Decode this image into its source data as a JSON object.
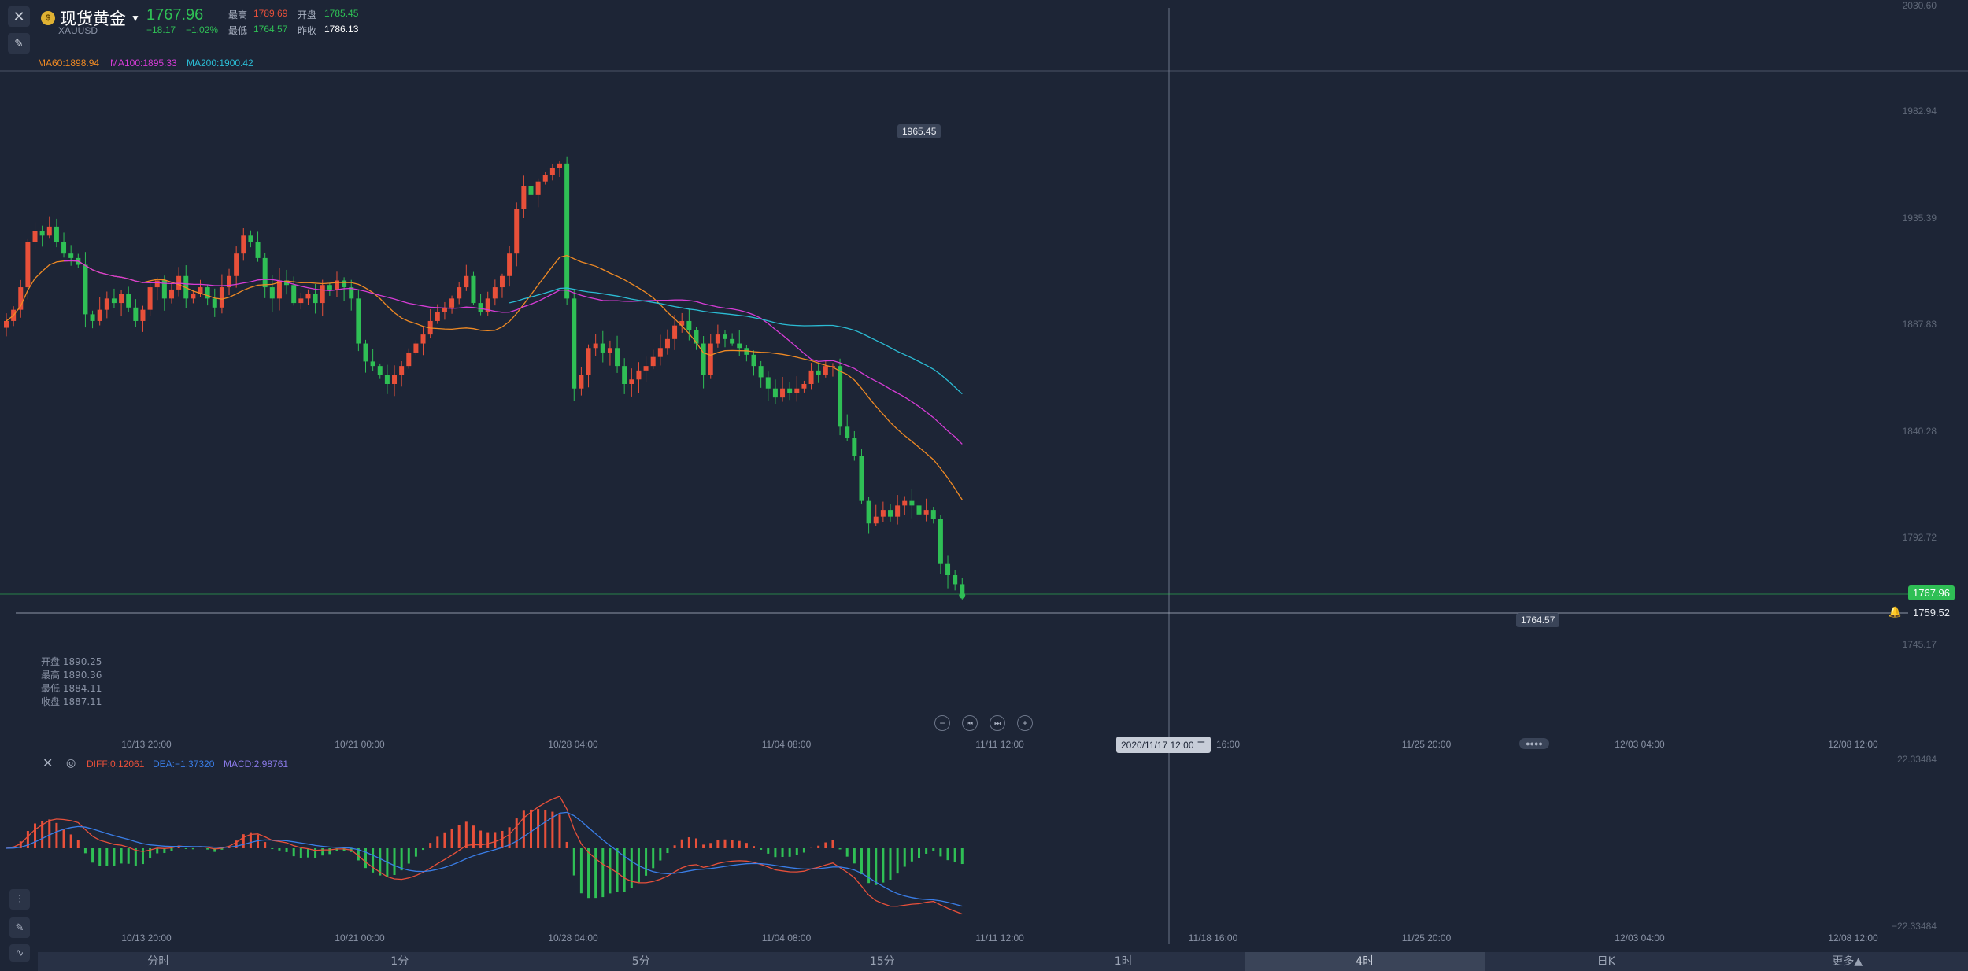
{
  "header": {
    "close_icon": "close-icon",
    "draw_tool_icon": "ruler-icon",
    "symbol_name": "现货黄金",
    "symbol_code": "XAUUSD",
    "price": "1767.96",
    "change": "−18.17",
    "change_pct": "−1.02%",
    "stats": {
      "high_label": "最高",
      "high_value": "1789.69",
      "open_label": "开盘",
      "open_value": "1785.45",
      "low_label": "最低",
      "low_value": "1764.57",
      "prev_close_label": "昨收",
      "prev_close_value": "1786.13"
    }
  },
  "ma_legend": [
    {
      "label": "MA60:1898.94",
      "color": "#f08a24"
    },
    {
      "label": "MA100:1895.33",
      "color": "#d63cd6"
    },
    {
      "label": "MA200:1900.42",
      "color": "#2bbcd4"
    }
  ],
  "y_axis": [
    "2030.60",
    "1982.94",
    "1935.39",
    "1887.83",
    "1840.28",
    "1792.72",
    "1745.17"
  ],
  "price_tags": {
    "high_marker": "1965.45",
    "low_marker": "1764.57",
    "last_price": "1767.96",
    "alert_line": "1759.52",
    "crosshair_time": "2020/11/17 12:00 二"
  },
  "ohlc_panel": [
    "开盘 1890.25",
    "最高 1890.36",
    "最低 1884.11",
    "收盘 1887.11"
  ],
  "x_axis": [
    "10/13 20:00",
    "10/21 00:00",
    "10/28 04:00",
    "11/04 08:00",
    "11/11 12:00",
    "16:00",
    "11/25 20:00",
    "12/03 04:00",
    "12/08 12:00"
  ],
  "x_axis_bottom": [
    "10/13 20:00",
    "10/21 00:00",
    "10/28 04:00",
    "11/04 08:00",
    "11/11 12:00",
    "11/18 16:00",
    "11/25 20:00",
    "12/03 04:00",
    "12/08 12:00"
  ],
  "zoom_controls": [
    "−",
    "⏮",
    "⏭",
    "+"
  ],
  "macd": {
    "diff": "DIFF:0.12061",
    "dea": "DEA:−1.37320",
    "macd": "MACD:2.98761",
    "y_top": "22.33484",
    "y_bottom": "−22.33484",
    "colors": {
      "diff": "#e8503a",
      "dea": "#3a7ee8",
      "macd": "#8a7ae8"
    }
  },
  "timeframes": [
    {
      "label": "分时",
      "active": false
    },
    {
      "label": "1分",
      "active": false
    },
    {
      "label": "5分",
      "active": false
    },
    {
      "label": "15分",
      "active": false
    },
    {
      "label": "1时",
      "active": false
    },
    {
      "label": "4时",
      "active": true
    },
    {
      "label": "日K",
      "active": false
    },
    {
      "label": "更多▲",
      "active": false
    }
  ],
  "colors": {
    "up": "#e8503a",
    "down": "#2fbf55",
    "bg": "#1d2536"
  },
  "chart_data": {
    "type": "candlestick",
    "y_range": [
      1745.17,
      2030.6
    ],
    "x_range": [
      "10/13 20:00",
      "12/08 12:00"
    ],
    "closes": [
      1890,
      1895,
      1905,
      1925,
      1930,
      1928,
      1932,
      1925,
      1920,
      1918,
      1915,
      1893,
      1890,
      1895,
      1900,
      1898,
      1902,
      1896,
      1890,
      1895,
      1905,
      1908,
      1900,
      1904,
      1910,
      1900,
      1902,
      1905,
      1900,
      1896,
      1905,
      1910,
      1920,
      1928,
      1925,
      1918,
      1905,
      1900,
      1908,
      1906,
      1898,
      1900,
      1902,
      1898,
      1906,
      1904,
      1908,
      1905,
      1900,
      1880,
      1872,
      1870,
      1866,
      1862,
      1866,
      1870,
      1876,
      1880,
      1884,
      1890,
      1894,
      1896,
      1900,
      1905,
      1910,
      1898,
      1894,
      1900,
      1905,
      1910,
      1920,
      1940,
      1950,
      1946,
      1952,
      1955,
      1958,
      1960,
      1900,
      1860,
      1866,
      1878,
      1880,
      1876,
      1878,
      1870,
      1862,
      1864,
      1868,
      1870,
      1874,
      1878,
      1882,
      1888,
      1890,
      1886,
      1880,
      1866,
      1880,
      1884,
      1882,
      1880,
      1878,
      1875,
      1870,
      1865,
      1860,
      1856,
      1860,
      1858,
      1860,
      1862,
      1868,
      1866,
      1870,
      1870,
      1843,
      1838,
      1830,
      1810,
      1800,
      1803,
      1806,
      1803,
      1808,
      1810,
      1808,
      1804,
      1806,
      1802,
      1782,
      1777,
      1773,
      1768
    ],
    "series": [
      {
        "name": "MA60",
        "values": [
          1898.94
        ]
      },
      {
        "name": "MA100",
        "values": [
          1895.33
        ]
      },
      {
        "name": "MA200",
        "values": [
          1900.42
        ]
      }
    ]
  }
}
